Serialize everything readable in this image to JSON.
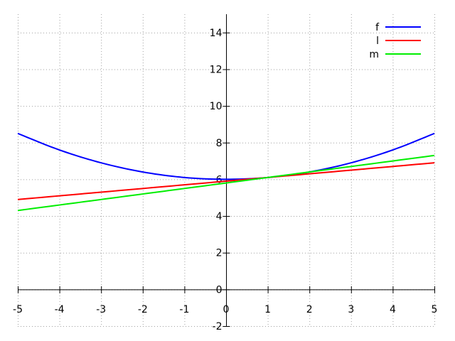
{
  "chart_data": {
    "type": "line",
    "xlim": [
      -5,
      5
    ],
    "ylim": [
      -2,
      15
    ],
    "x_ticks": [
      -5,
      -4,
      -3,
      -2,
      -1,
      0,
      1,
      2,
      3,
      4,
      5
    ],
    "y_ticks": [
      -2,
      0,
      2,
      4,
      6,
      8,
      10,
      12,
      14
    ],
    "x_tick_labels": [
      "-5",
      "-4",
      "-3",
      "-2",
      "-1",
      "0",
      "1",
      "2",
      "3",
      "4",
      "5"
    ],
    "y_tick_labels": [
      "-2",
      "0",
      "2",
      "4",
      "6",
      "8",
      "10",
      "12",
      "14"
    ],
    "grid": true,
    "legend_position": "top-right",
    "x": [
      -5,
      -4,
      -3,
      -2,
      -1,
      0,
      1,
      2,
      3,
      4,
      5
    ],
    "series": [
      {
        "name": "f",
        "color": "#0000ff",
        "values": [
          8.5,
          7.6,
          6.9,
          6.4,
          6.1,
          6.0,
          6.1,
          6.4,
          6.9,
          7.6,
          8.5
        ]
      },
      {
        "name": "l",
        "color": "#ff0000",
        "values": [
          4.9,
          5.1,
          5.3,
          5.5,
          5.7,
          5.9,
          6.1,
          6.3,
          6.5,
          6.7,
          6.9
        ]
      },
      {
        "name": "m",
        "color": "#00ee00",
        "values": [
          4.3,
          4.6,
          4.9,
          5.2,
          5.5,
          5.8,
          6.1,
          6.4,
          6.7,
          7.0,
          7.3
        ]
      }
    ]
  }
}
